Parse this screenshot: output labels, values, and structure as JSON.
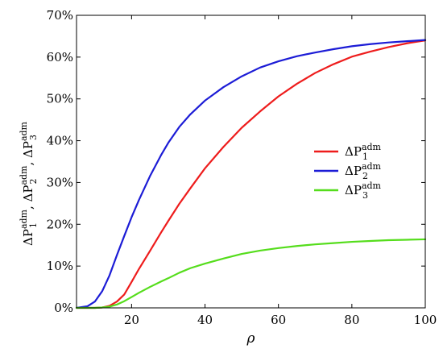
{
  "chart_data": {
    "type": "line",
    "xlabel": "ρ",
    "ylabel": "ΔP1adm, ΔP2adm, ΔP3adm",
    "xlim": [
      5,
      100
    ],
    "ylim": [
      0,
      70
    ],
    "x_ticks": [
      20,
      40,
      60,
      80,
      100
    ],
    "y_ticks": [
      0,
      10,
      20,
      30,
      40,
      50,
      60,
      70
    ],
    "y_tick_labels": [
      "0%",
      "10%",
      "20%",
      "30%",
      "40%",
      "50%",
      "60%",
      "70%"
    ],
    "legend_position": "right-middle",
    "grid": false,
    "x": [
      5,
      8,
      10,
      12,
      14,
      16,
      18,
      20,
      22,
      25,
      28,
      30,
      33,
      36,
      40,
      45,
      50,
      55,
      60,
      65,
      70,
      75,
      80,
      85,
      90,
      95,
      100
    ],
    "series": [
      {
        "name": "ΔP1adm",
        "color": "#ee1c1c",
        "values": [
          0,
          0,
          0,
          0.1,
          0.5,
          1.5,
          3.2,
          6.2,
          9.3,
          13.6,
          18.0,
          20.8,
          24.9,
          28.6,
          33.4,
          38.5,
          43.1,
          47.0,
          50.6,
          53.6,
          56.2,
          58.3,
          60.1,
          61.3,
          62.4,
          63.3,
          64.0
        ]
      },
      {
        "name": "ΔP2adm",
        "color": "#1c1cd6",
        "values": [
          0,
          0.4,
          1.5,
          4.0,
          7.8,
          12.6,
          17.2,
          21.7,
          25.8,
          31.5,
          36.5,
          39.5,
          43.3,
          46.3,
          49.6,
          52.8,
          55.4,
          57.5,
          59.0,
          60.2,
          61.1,
          61.9,
          62.6,
          63.1,
          63.5,
          63.8,
          64.1
        ]
      },
      {
        "name": "ΔP3adm",
        "color": "#55dd1c",
        "values": [
          0,
          0,
          0,
          0.1,
          0.3,
          0.8,
          1.6,
          2.6,
          3.6,
          5.0,
          6.3,
          7.1,
          8.4,
          9.5,
          10.6,
          11.8,
          12.9,
          13.7,
          14.3,
          14.8,
          15.2,
          15.5,
          15.8,
          16.0,
          16.2,
          16.3,
          16.4
        ]
      }
    ]
  }
}
